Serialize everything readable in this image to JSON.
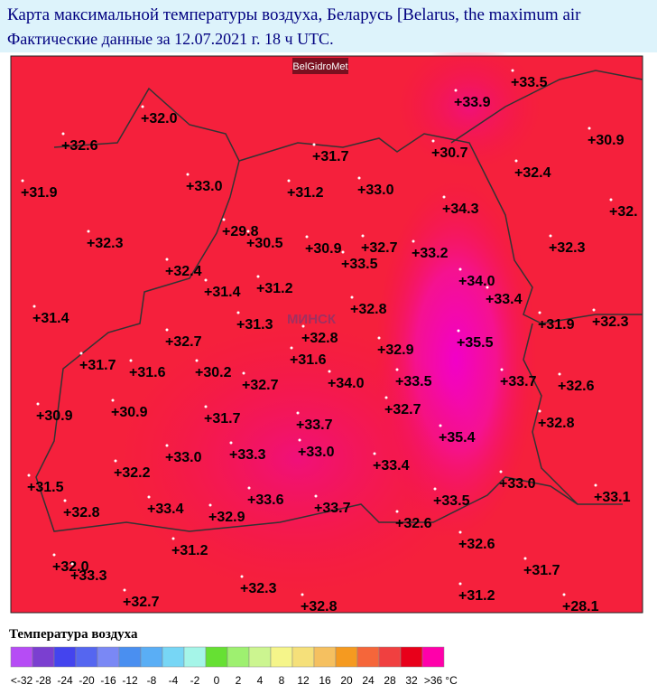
{
  "header": {
    "title": "Карта максимальной температуры воздуха, Беларусь [Belarus, the maximum air",
    "subtitle": "Фактические данные за 12.07.2021 г. 18 ч UTC."
  },
  "map": {
    "source": "BelGidroMet",
    "city": "МИНСК",
    "temperatures": [
      "+33.5",
      "+33.9",
      "+32.0",
      "+32.6",
      "+30.7",
      "+31.7",
      "+30.9",
      "+32.4",
      "+31.9",
      "+33.0",
      "+31.2",
      "+33.0",
      "+34.3",
      "+32.",
      "+29.8",
      "+32.3",
      "+30.5",
      "+30.9",
      "+32.7",
      "+33.2",
      "+32.3",
      "+33.5",
      "+32.4",
      "+34.0",
      "+31.4",
      "+31.2",
      "+33.4",
      "+32.8",
      "+31.4",
      "+31.9",
      "+32.3",
      "+31.3",
      "+32.8",
      "+35.5",
      "+32.7",
      "+32.9",
      "+31.6",
      "+31.7",
      "+31.6",
      "+30.2",
      "+34.0",
      "+33.5",
      "+33.7",
      "+32.6",
      "+32.7",
      "+32.7",
      "+30.9",
      "+30.9",
      "+31.7",
      "+32.8",
      "+33.7",
      "+35.4",
      "+33.0",
      "+33.3",
      "+33.0",
      "+33.4",
      "+32.2",
      "+33.0",
      "+31.5",
      "+33.1",
      "+33.6",
      "+33.5",
      "+32.8",
      "+33.4",
      "+33.7",
      "+32.9",
      "+32.6",
      "+32.6",
      "+31.2",
      "+32.0",
      "+33.3",
      "+31.7",
      "+32.3",
      "+31.2",
      "+32.7",
      "+32.8",
      "+28.1"
    ]
  },
  "legend": {
    "title": "Температура воздуха",
    "unit": "°C",
    "labels": [
      "<-32",
      "-28",
      "-24",
      "-20",
      "-16",
      "-12",
      "-8",
      "-4",
      "-2",
      "0",
      "2",
      "4",
      "8",
      "12",
      "16",
      "20",
      "24",
      "28",
      "32",
      ">36"
    ],
    "colors": [
      "#b64cf5",
      "#7b3fd0",
      "#4444ee",
      "#5566f0",
      "#7a88f5",
      "#4a8ff0",
      "#5aaef5",
      "#77d6f5",
      "#a5f5e8",
      "#66e033",
      "#9ef070",
      "#ccf590",
      "#f5f58a",
      "#f5e07a",
      "#f5c060",
      "#f59a20",
      "#f5663a",
      "#f04040",
      "#e8001a",
      "#ff00aa"
    ]
  }
}
